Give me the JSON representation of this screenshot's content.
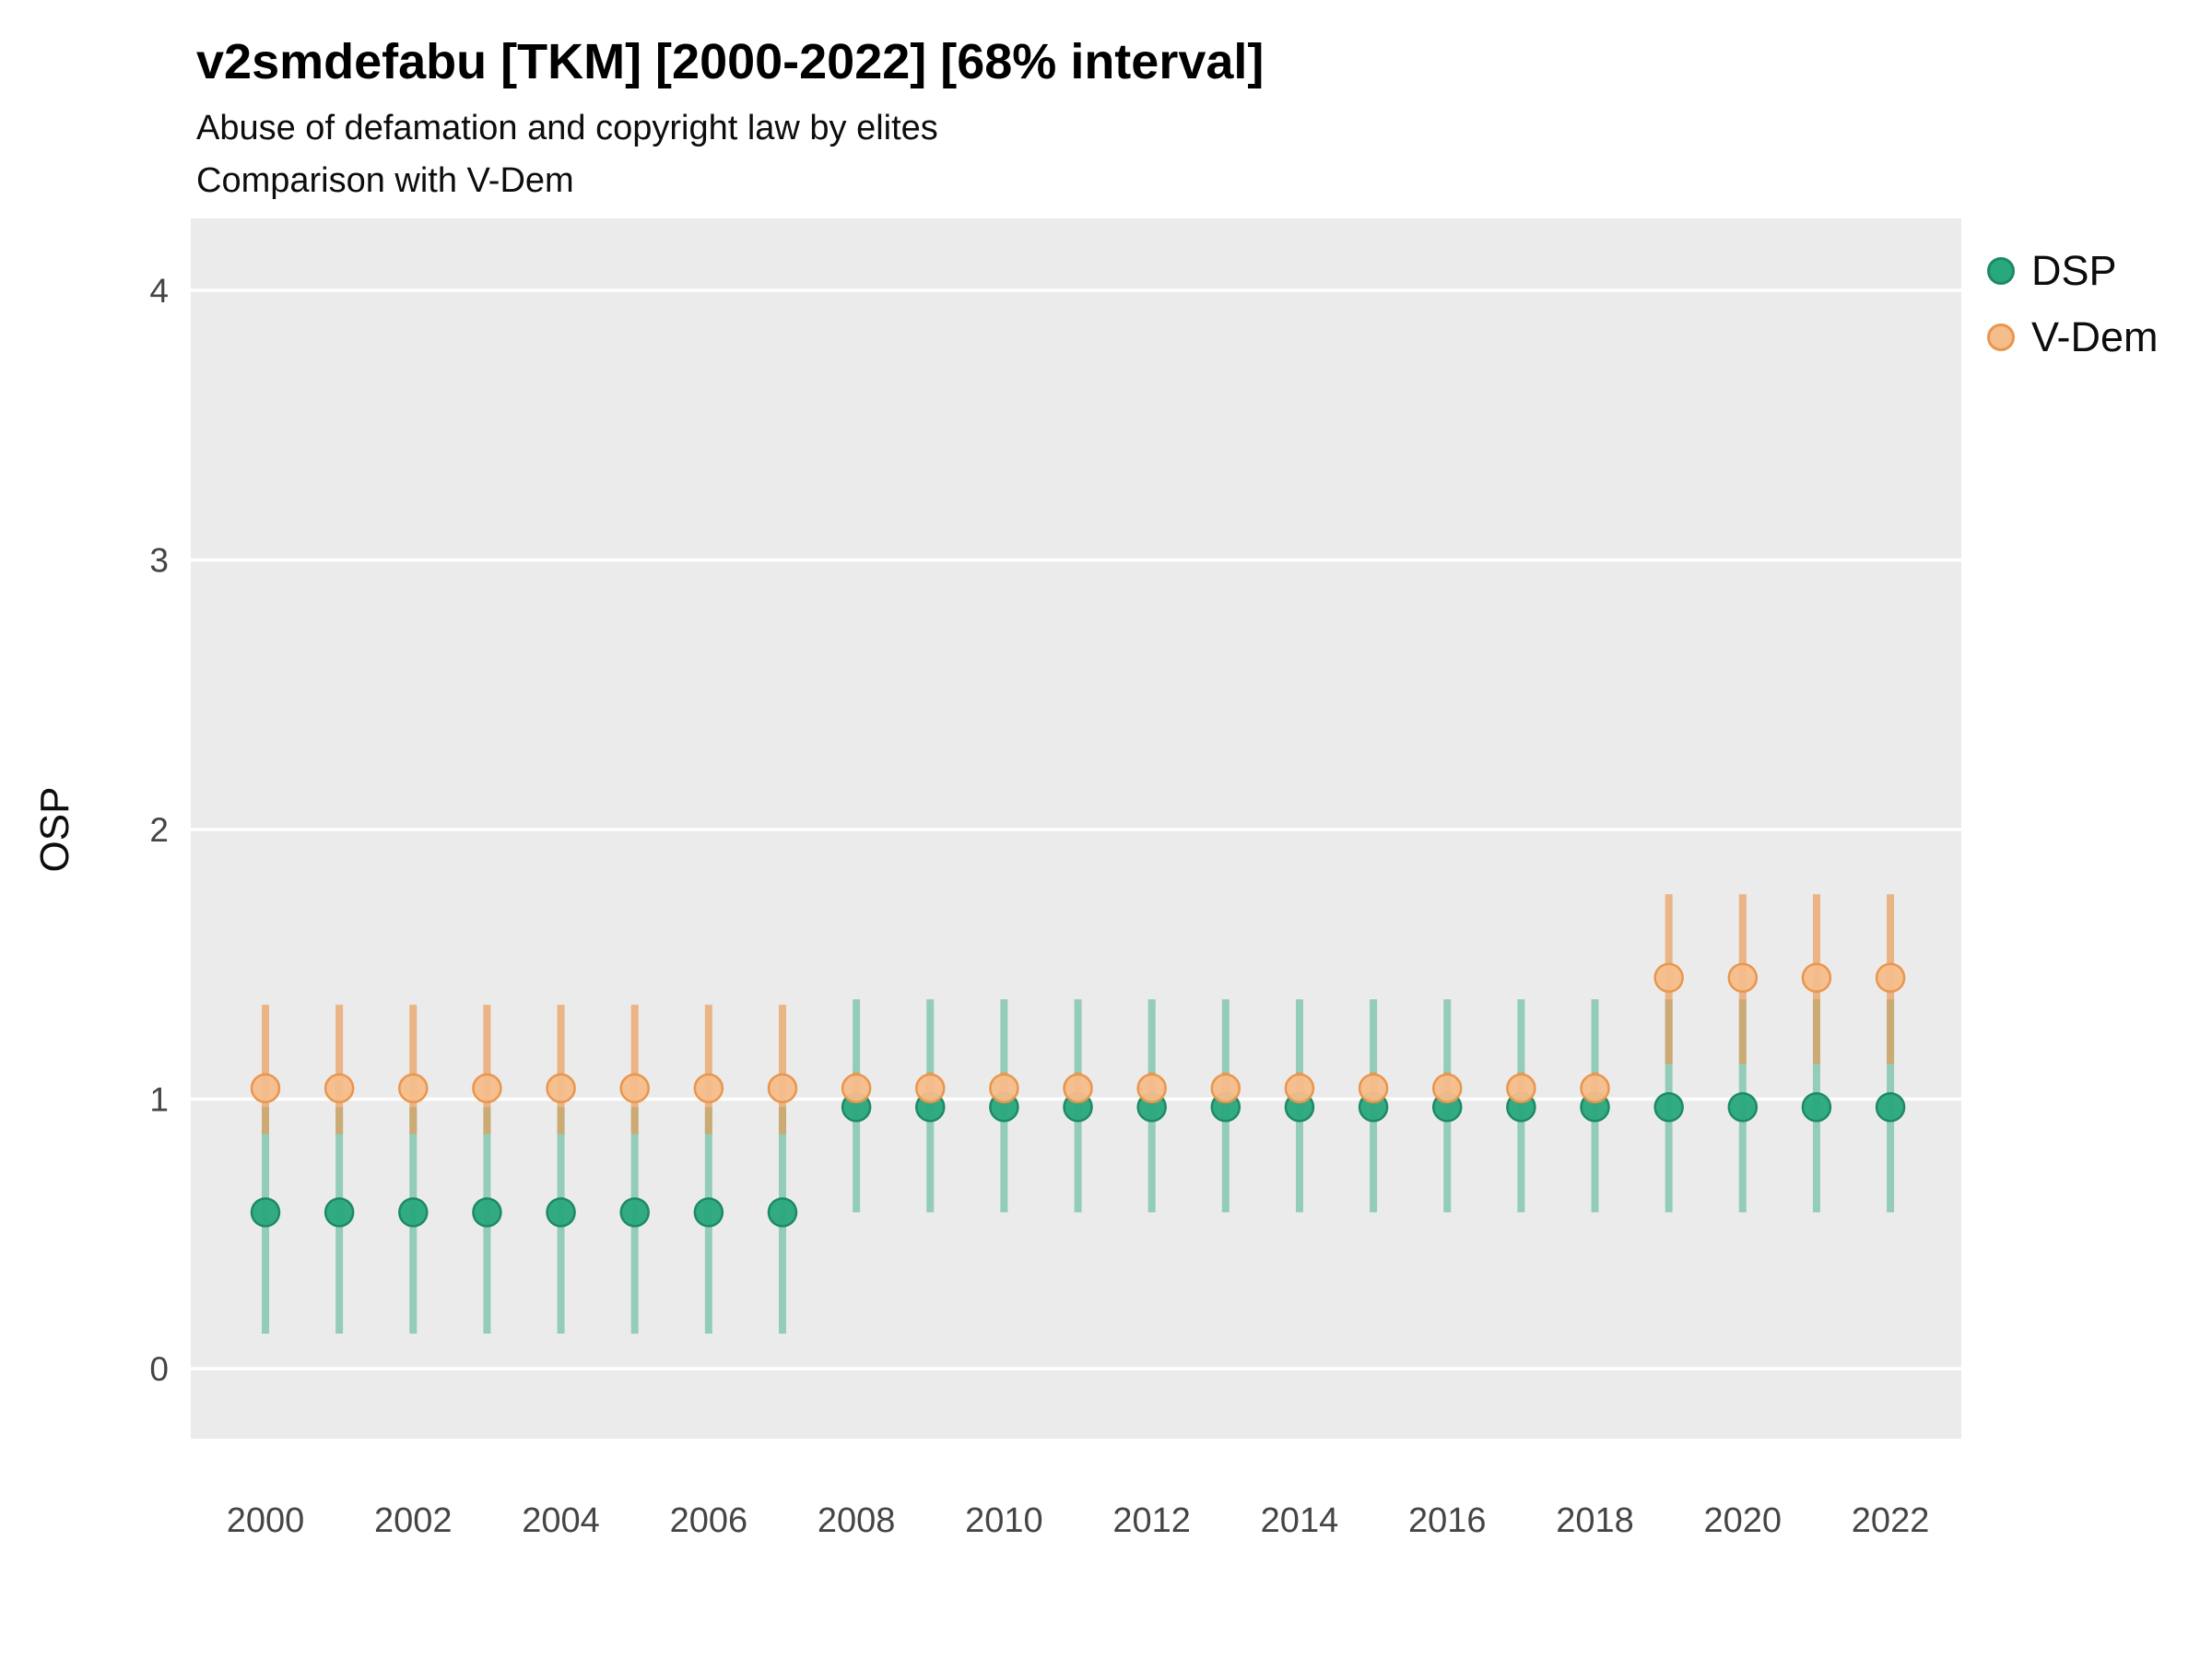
{
  "chart_data": {
    "type": "pointrange",
    "title": "v2smdefabu [TKM] [2000-2022] [68% interval]",
    "subtitle": "Abuse of defamation and copyright law by elites",
    "subtitle2": "Comparison with V-Dem",
    "ylabel": "OSP",
    "xlabel": "",
    "ylim": [
      -0.27,
      4.27
    ],
    "yticks": [
      0,
      1,
      2,
      3,
      4
    ],
    "xticks": [
      2000,
      2002,
      2004,
      2006,
      2008,
      2010,
      2012,
      2014,
      2016,
      2018,
      2020,
      2022
    ],
    "grid": "major-horizontal-white-on-gray",
    "panel_background": "#ebebeb",
    "gridline_color": "#ffffff",
    "tick_label_color": "#454545",
    "legend_position": "right-top",
    "x": [
      2000,
      2001,
      2002,
      2003,
      2004,
      2005,
      2006,
      2007,
      2008,
      2009,
      2010,
      2011,
      2012,
      2013,
      2014,
      2015,
      2016,
      2017,
      2018,
      2019,
      2020,
      2021,
      2022
    ],
    "series": [
      {
        "name": "DSP",
        "point_color": "#29a87c",
        "point_stroke": "#1d8a64",
        "interval_color": "rgba(41,168,124,0.45)",
        "est": [
          0.58,
          0.58,
          0.58,
          0.58,
          0.58,
          0.58,
          0.58,
          0.58,
          0.97,
          0.97,
          0.97,
          0.97,
          0.97,
          0.97,
          0.97,
          0.97,
          0.97,
          0.97,
          0.97,
          0.97,
          0.97,
          0.97,
          0.97
        ],
        "lo": [
          0.13,
          0.13,
          0.13,
          0.13,
          0.13,
          0.13,
          0.13,
          0.13,
          0.58,
          0.58,
          0.58,
          0.58,
          0.58,
          0.58,
          0.58,
          0.58,
          0.58,
          0.58,
          0.58,
          0.58,
          0.58,
          0.58,
          0.58
        ],
        "hi": [
          0.97,
          0.97,
          0.97,
          0.97,
          0.97,
          0.97,
          0.97,
          0.97,
          1.37,
          1.37,
          1.37,
          1.37,
          1.37,
          1.37,
          1.37,
          1.37,
          1.37,
          1.37,
          1.37,
          1.37,
          1.37,
          1.37,
          1.37
        ]
      },
      {
        "name": "V-Dem",
        "point_color": "#f5bd8b",
        "point_stroke": "#e9964d",
        "interval_color": "rgba(233,150,77,0.65)",
        "est": [
          1.04,
          1.04,
          1.04,
          1.04,
          1.04,
          1.04,
          1.04,
          1.04,
          1.04,
          1.04,
          1.04,
          1.04,
          1.04,
          1.04,
          1.04,
          1.04,
          1.04,
          1.04,
          1.04,
          1.45,
          1.45,
          1.45,
          1.45
        ],
        "lo": [
          0.87,
          0.87,
          0.87,
          0.87,
          0.87,
          0.87,
          0.87,
          0.87,
          0.96,
          0.96,
          0.96,
          0.96,
          0.96,
          0.96,
          0.96,
          0.96,
          0.96,
          0.96,
          0.96,
          1.13,
          1.13,
          1.13,
          1.13
        ],
        "hi": [
          1.35,
          1.35,
          1.35,
          1.35,
          1.35,
          1.35,
          1.35,
          1.35,
          1.1,
          1.1,
          1.1,
          1.1,
          1.1,
          1.1,
          1.1,
          1.1,
          1.1,
          1.1,
          1.1,
          1.76,
          1.76,
          1.76,
          1.76
        ]
      }
    ]
  }
}
